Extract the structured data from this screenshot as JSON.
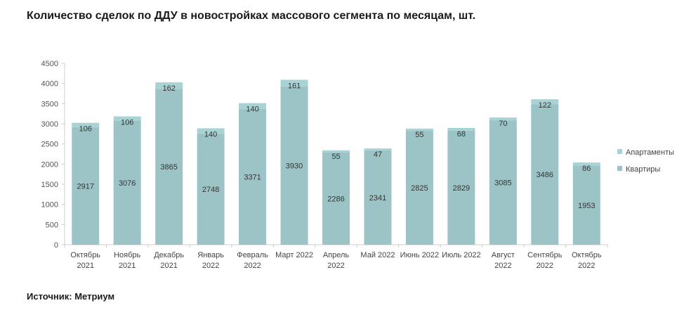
{
  "title": "Количество сделок по ДДУ в новостройках массового сегмента по месяцам, шт.",
  "source": "Источник: Метриум",
  "colors": {
    "apartments": "#a8d3d4",
    "flats": "#9cc4c6",
    "axis": "#cccccc"
  },
  "chart_data": {
    "type": "bar",
    "stacked": true,
    "categories": [
      [
        "Октябрь",
        "2021"
      ],
      [
        "Ноябрь",
        "2021"
      ],
      [
        "Декабрь",
        "2021"
      ],
      [
        "Январь",
        "2022"
      ],
      [
        "Февраль",
        "2022"
      ],
      [
        "Март 2022"
      ],
      [
        "Апрель",
        "2022"
      ],
      [
        "Май 2022"
      ],
      [
        "Июнь 2022"
      ],
      [
        "Июль 2022"
      ],
      [
        "Август",
        "2022"
      ],
      [
        "Сентябрь",
        "2022"
      ],
      [
        "Октябрь",
        "2022"
      ]
    ],
    "series": [
      {
        "name": "Квартиры",
        "values": [
          2917,
          3076,
          3865,
          2748,
          3371,
          3930,
          2286,
          2341,
          2825,
          2829,
          3085,
          3486,
          1953
        ]
      },
      {
        "name": "Апартаменты",
        "values": [
          106,
          106,
          162,
          140,
          140,
          161,
          55,
          47,
          55,
          68,
          70,
          122,
          86
        ]
      }
    ],
    "ylim": [
      0,
      4500
    ],
    "yticks": [
      0,
      500,
      1000,
      1500,
      2000,
      2500,
      3000,
      3500,
      4000,
      4500
    ],
    "legend": "right",
    "grid": false
  }
}
